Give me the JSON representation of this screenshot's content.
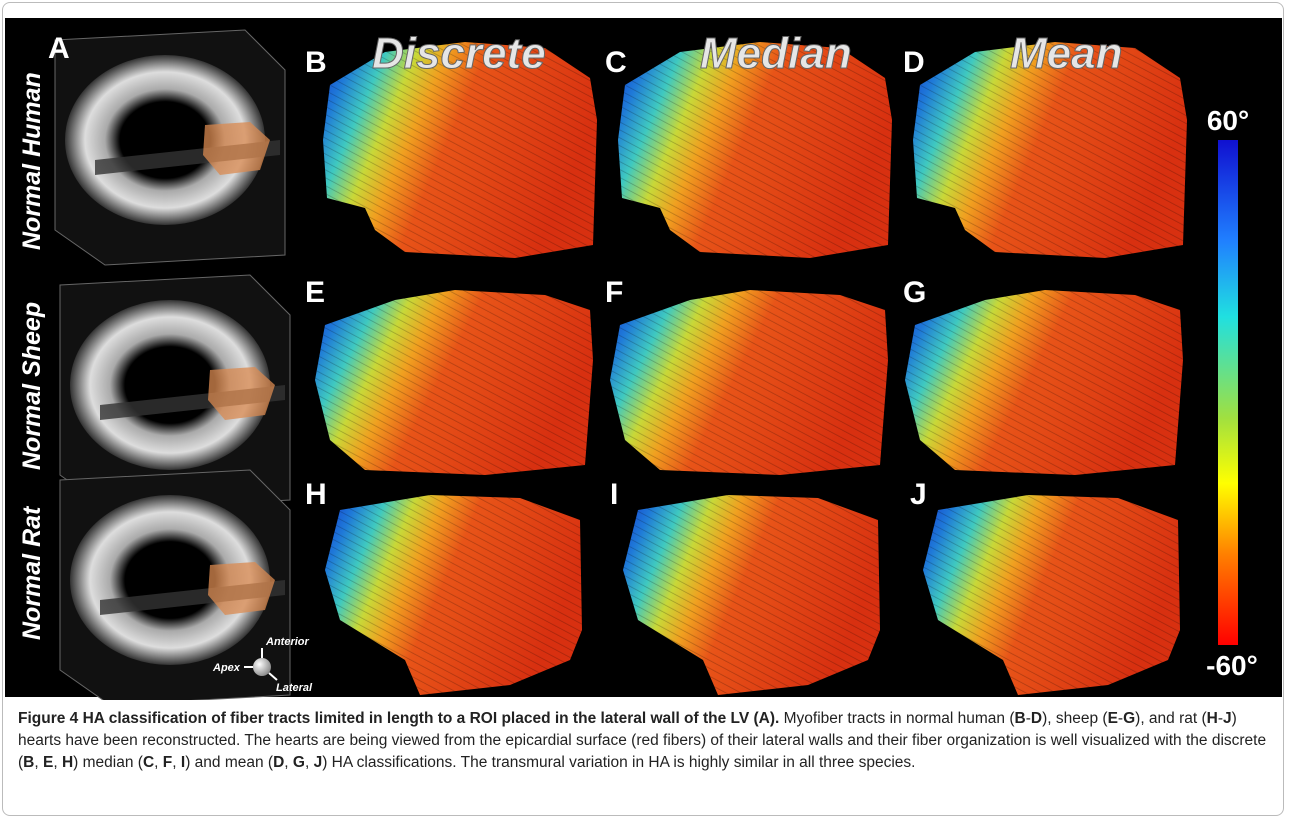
{
  "figure": {
    "panel_labels": [
      "A",
      "B",
      "C",
      "D",
      "E",
      "F",
      "G",
      "H",
      "I",
      "J"
    ],
    "column_headers": [
      "Discrete",
      "Median",
      "Mean"
    ],
    "row_labels": [
      "Normal Human",
      "Normal Sheep",
      "Normal Rat"
    ],
    "colorbar": {
      "max_label": "60°",
      "min_label": "-60°"
    },
    "orientation": {
      "up": "Anterior",
      "left": "Apex",
      "right": "Lateral"
    }
  },
  "caption": {
    "title": "Figure 4 HA classification of fiber tracts limited in length to a ROI placed in the lateral wall of the LV (A).",
    "parts": [
      {
        "text": " Myofiber tracts in normal human (",
        "bold": false
      },
      {
        "text": "B",
        "bold": true
      },
      {
        "text": "-",
        "bold": false
      },
      {
        "text": "D",
        "bold": true
      },
      {
        "text": "), sheep (",
        "bold": false
      },
      {
        "text": "E",
        "bold": true
      },
      {
        "text": "-",
        "bold": false
      },
      {
        "text": "G",
        "bold": true
      },
      {
        "text": "), and rat (",
        "bold": false
      },
      {
        "text": "H",
        "bold": true
      },
      {
        "text": "-",
        "bold": false
      },
      {
        "text": "J",
        "bold": true
      },
      {
        "text": ") hearts have been reconstructed. The hearts are being viewed from the epicardial surface (red fibers) of their lateral walls and their fiber organization is well visualized with the discrete (",
        "bold": false
      },
      {
        "text": "B",
        "bold": true
      },
      {
        "text": ", ",
        "bold": false
      },
      {
        "text": "E",
        "bold": true
      },
      {
        "text": ", ",
        "bold": false
      },
      {
        "text": "H",
        "bold": true
      },
      {
        "text": ") median (",
        "bold": false
      },
      {
        "text": "C",
        "bold": true
      },
      {
        "text": ", ",
        "bold": false
      },
      {
        "text": "F",
        "bold": true
      },
      {
        "text": ", ",
        "bold": false
      },
      {
        "text": "I",
        "bold": true
      },
      {
        "text": ") and mean (",
        "bold": false
      },
      {
        "text": "D",
        "bold": true
      },
      {
        "text": ", ",
        "bold": false
      },
      {
        "text": "G",
        "bold": true
      },
      {
        "text": ", ",
        "bold": false
      },
      {
        "text": "J",
        "bold": true
      },
      {
        "text": ") HA classifications. The transmural variation in HA is highly similar in all three species.",
        "bold": false
      }
    ]
  }
}
